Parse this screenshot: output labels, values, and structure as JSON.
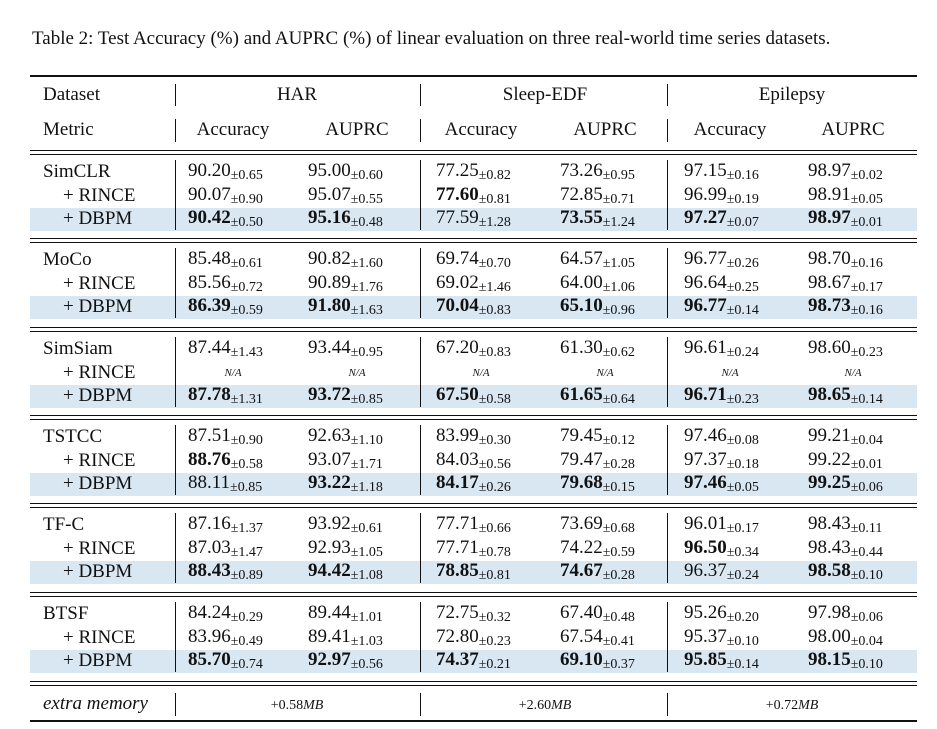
{
  "caption": "Table 2: Test Accuracy (%) and AUPRC (%) of linear evaluation on three real-world time series datasets.",
  "header": {
    "dataset_label": "Dataset",
    "metric_label": "Metric",
    "columns": [
      {
        "dataset": "HAR",
        "metrics": [
          "Accuracy",
          "AUPRC"
        ]
      },
      {
        "dataset": "Sleep-EDF",
        "metrics": [
          "Accuracy",
          "AUPRC"
        ]
      },
      {
        "dataset": "Epilepsy",
        "metrics": [
          "Accuracy",
          "AUPRC"
        ]
      }
    ]
  },
  "groups": [
    {
      "rows": [
        {
          "method": "SimCLR",
          "cells": [
            {
              "mean": "90.20",
              "std": "±0.65"
            },
            {
              "mean": "95.00",
              "std": "±0.60"
            },
            {
              "mean": "77.25",
              "std": "±0.82"
            },
            {
              "mean": "73.26",
              "std": "±0.95"
            },
            {
              "mean": "97.15",
              "std": "±0.16"
            },
            {
              "mean": "98.97",
              "std": "±0.02"
            }
          ]
        },
        {
          "method": "+ RINCE",
          "cells": [
            {
              "mean": "90.07",
              "std": "±0.90"
            },
            {
              "mean": "95.07",
              "std": "±0.55"
            },
            {
              "mean": "77.60",
              "std": "±0.81",
              "bold": true
            },
            {
              "mean": "72.85",
              "std": "±0.71"
            },
            {
              "mean": "96.99",
              "std": "±0.19"
            },
            {
              "mean": "98.91",
              "std": "±0.05"
            }
          ]
        },
        {
          "method": "+ DBPM",
          "highlight": true,
          "cells": [
            {
              "mean": "90.42",
              "std": "±0.50",
              "bold": true
            },
            {
              "mean": "95.16",
              "std": "±0.48",
              "bold": true
            },
            {
              "mean": "77.59",
              "std": "±1.28"
            },
            {
              "mean": "73.55",
              "std": "±1.24",
              "bold": true
            },
            {
              "mean": "97.27",
              "std": "±0.07",
              "bold": true
            },
            {
              "mean": "98.97",
              "std": "±0.01",
              "bold": true
            }
          ]
        }
      ]
    },
    {
      "rows": [
        {
          "method": "MoCo",
          "cells": [
            {
              "mean": "85.48",
              "std": "±0.61"
            },
            {
              "mean": "90.82",
              "std": "±1.60"
            },
            {
              "mean": "69.74",
              "std": "±0.70"
            },
            {
              "mean": "64.57",
              "std": "±1.05"
            },
            {
              "mean": "96.77",
              "std": "±0.26"
            },
            {
              "mean": "98.70",
              "std": "±0.16"
            }
          ]
        },
        {
          "method": "+ RINCE",
          "cells": [
            {
              "mean": "85.56",
              "std": "±0.72"
            },
            {
              "mean": "90.89",
              "std": "±1.76"
            },
            {
              "mean": "69.02",
              "std": "±1.46"
            },
            {
              "mean": "64.00",
              "std": "±1.06"
            },
            {
              "mean": "96.64",
              "std": "±0.25"
            },
            {
              "mean": "98.67",
              "std": "±0.17"
            }
          ]
        },
        {
          "method": "+ DBPM",
          "highlight": true,
          "cells": [
            {
              "mean": "86.39",
              "std": "±0.59",
              "bold": true
            },
            {
              "mean": "91.80",
              "std": "±1.63",
              "bold": true
            },
            {
              "mean": "70.04",
              "std": "±0.83",
              "bold": true
            },
            {
              "mean": "65.10",
              "std": "±0.96",
              "bold": true
            },
            {
              "mean": "96.77",
              "std": "±0.14",
              "bold": true
            },
            {
              "mean": "98.73",
              "std": "±0.16",
              "bold": true
            }
          ]
        }
      ]
    },
    {
      "rows": [
        {
          "method": "SimSiam",
          "cells": [
            {
              "mean": "87.44",
              "std": "±1.43"
            },
            {
              "mean": "93.44",
              "std": "±0.95"
            },
            {
              "mean": "67.20",
              "std": "±0.83"
            },
            {
              "mean": "61.30",
              "std": "±0.62"
            },
            {
              "mean": "96.61",
              "std": "±0.24"
            },
            {
              "mean": "98.60",
              "std": "±0.23"
            }
          ]
        },
        {
          "method": "+ RINCE",
          "cells": [
            {
              "text": "N/A"
            },
            {
              "text": "N/A"
            },
            {
              "text": "N/A"
            },
            {
              "text": "N/A"
            },
            {
              "text": "N/A"
            },
            {
              "text": "N/A"
            }
          ]
        },
        {
          "method": "+ DBPM",
          "highlight": true,
          "cells": [
            {
              "mean": "87.78",
              "std": "±1.31",
              "bold": true
            },
            {
              "mean": "93.72",
              "std": "±0.85",
              "bold": true
            },
            {
              "mean": "67.50",
              "std": "±0.58",
              "bold": true
            },
            {
              "mean": "61.65",
              "std": "±0.64",
              "bold": true
            },
            {
              "mean": "96.71",
              "std": "±0.23",
              "bold": true
            },
            {
              "mean": "98.65",
              "std": "±0.14",
              "bold": true
            }
          ]
        }
      ]
    },
    {
      "rows": [
        {
          "method": "TSTCC",
          "cells": [
            {
              "mean": "87.51",
              "std": "±0.90"
            },
            {
              "mean": "92.63",
              "std": "±1.10"
            },
            {
              "mean": "83.99",
              "std": "±0.30"
            },
            {
              "mean": "79.45",
              "std": "±0.12"
            },
            {
              "mean": "97.46",
              "std": "±0.08"
            },
            {
              "mean": "99.21",
              "std": "±0.04"
            }
          ]
        },
        {
          "method": "+ RINCE",
          "cells": [
            {
              "mean": "88.76",
              "std": "±0.58",
              "bold": true
            },
            {
              "mean": "93.07",
              "std": "±1.71"
            },
            {
              "mean": "84.03",
              "std": "±0.56"
            },
            {
              "mean": "79.47",
              "std": "±0.28"
            },
            {
              "mean": "97.37",
              "std": "±0.18"
            },
            {
              "mean": "99.22",
              "std": "±0.01"
            }
          ]
        },
        {
          "method": "+ DBPM",
          "highlight": true,
          "cells": [
            {
              "mean": "88.11",
              "std": "±0.85"
            },
            {
              "mean": "93.22",
              "std": "±1.18",
              "bold": true
            },
            {
              "mean": "84.17",
              "std": "±0.26",
              "bold": true
            },
            {
              "mean": "79.68",
              "std": "±0.15",
              "bold": true
            },
            {
              "mean": "97.46",
              "std": "±0.05",
              "bold": true
            },
            {
              "mean": "99.25",
              "std": "±0.06",
              "bold": true
            }
          ]
        }
      ]
    },
    {
      "rows": [
        {
          "method": "TF-C",
          "cells": [
            {
              "mean": "87.16",
              "std": "±1.37"
            },
            {
              "mean": "93.92",
              "std": "±0.61"
            },
            {
              "mean": "77.71",
              "std": "±0.66"
            },
            {
              "mean": "73.69",
              "std": "±0.68"
            },
            {
              "mean": "96.01",
              "std": "±0.17"
            },
            {
              "mean": "98.43",
              "std": "±0.11"
            }
          ]
        },
        {
          "method": "+ RINCE",
          "cells": [
            {
              "mean": "87.03",
              "std": "±1.47"
            },
            {
              "mean": "92.93",
              "std": "±1.05"
            },
            {
              "mean": "77.71",
              "std": "±0.78"
            },
            {
              "mean": "74.22",
              "std": "±0.59"
            },
            {
              "mean": "96.50",
              "std": "±0.34",
              "bold": true
            },
            {
              "mean": "98.43",
              "std": "±0.44"
            }
          ]
        },
        {
          "method": "+ DBPM",
          "highlight": true,
          "cells": [
            {
              "mean": "88.43",
              "std": "±0.89",
              "bold": true
            },
            {
              "mean": "94.42",
              "std": "±1.08",
              "bold": true
            },
            {
              "mean": "78.85",
              "std": "±0.81",
              "bold": true
            },
            {
              "mean": "74.67",
              "std": "±0.28",
              "bold": true
            },
            {
              "mean": "96.37",
              "std": "±0.24"
            },
            {
              "mean": "98.58",
              "std": "±0.10",
              "bold": true
            }
          ]
        }
      ]
    },
    {
      "rows": [
        {
          "method": "BTSF",
          "cells": [
            {
              "mean": "84.24",
              "std": "±0.29"
            },
            {
              "mean": "89.44",
              "std": "±1.01"
            },
            {
              "mean": "72.75",
              "std": "±0.32"
            },
            {
              "mean": "67.40",
              "std": "±0.48"
            },
            {
              "mean": "95.26",
              "std": "±0.20"
            },
            {
              "mean": "97.98",
              "std": "±0.06"
            }
          ]
        },
        {
          "method": "+ RINCE",
          "cells": [
            {
              "mean": "83.96",
              "std": "±0.49"
            },
            {
              "mean": "89.41",
              "std": "±1.03"
            },
            {
              "mean": "72.80",
              "std": "±0.23"
            },
            {
              "mean": "67.54",
              "std": "±0.41"
            },
            {
              "mean": "95.37",
              "std": "±0.10"
            },
            {
              "mean": "98.00",
              "std": "±0.04"
            }
          ]
        },
        {
          "method": "+ DBPM",
          "highlight": true,
          "cells": [
            {
              "mean": "85.70",
              "std": "±0.74",
              "bold": true
            },
            {
              "mean": "92.97",
              "std": "±0.56",
              "bold": true
            },
            {
              "mean": "74.37",
              "std": "±0.21",
              "bold": true
            },
            {
              "mean": "69.10",
              "std": "±0.37",
              "bold": true
            },
            {
              "mean": "95.85",
              "std": "±0.14",
              "bold": true
            },
            {
              "mean": "98.15",
              "std": "±0.10",
              "bold": true
            }
          ]
        }
      ]
    }
  ],
  "footer": {
    "label": "extra memory",
    "values": [
      {
        "value": "+0.58",
        "unit": "MB"
      },
      {
        "value": "+2.60",
        "unit": "MB"
      },
      {
        "value": "+0.72",
        "unit": "MB"
      }
    ]
  }
}
